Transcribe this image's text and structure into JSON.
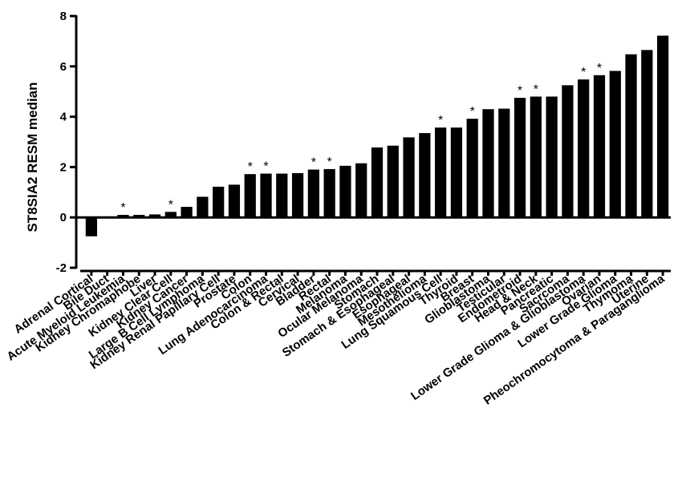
{
  "chart_data": {
    "type": "bar",
    "title": "",
    "xlabel": "",
    "ylabel": "ST8SIA2 RESM median",
    "ylim": [
      -2,
      8
    ],
    "yticks": [
      -2,
      0,
      2,
      4,
      6,
      8
    ],
    "grid": false,
    "legend": "none",
    "bar_color": "#000000",
    "significance_marker": "*",
    "categories": [
      "Adrenal Cortical",
      "Bile Duct",
      "Acute Myeloid Leukemia",
      "Kidney Chromaphobe",
      "Liver",
      "Kidney Clear Cell",
      "Kidney Cancer",
      "Large B Cell Lymphoma",
      "Kidney Renal Papillary Cell",
      "Prostate",
      "Colon",
      "Lung Adenocarcinoma",
      "Colon & Rectal",
      "Cervical",
      "Bladder",
      "Rectal",
      "Melanoma",
      "Ocular Melanoma",
      "Stomach",
      "Stomach & Esophageal",
      "Esophageal",
      "Mesothelioma",
      "Lung Squamous Cell",
      "Thyroid",
      "Breast",
      "Glioblastoma",
      "Testicular",
      "Endometroid",
      "Head & Neck",
      "Pancreatic",
      "Sacrcoma",
      "Lower Grade Glioma & Glioblastoma",
      "Ovarian",
      "Lower Grade Glioma",
      "Thymoma",
      "Uterine",
      "Pheochromocytoma & Paraganglioma"
    ],
    "values": [
      -0.75,
      0.0,
      0.1,
      0.1,
      0.12,
      0.22,
      0.42,
      0.82,
      1.22,
      1.3,
      1.72,
      1.74,
      1.74,
      1.76,
      1.9,
      1.92,
      2.05,
      2.15,
      2.78,
      2.85,
      3.18,
      3.35,
      3.57,
      3.57,
      3.92,
      4.3,
      4.32,
      4.75,
      4.8,
      4.8,
      5.25,
      5.48,
      5.65,
      5.82,
      6.48,
      6.65,
      7.22
    ],
    "significant": [
      false,
      false,
      true,
      false,
      false,
      true,
      false,
      false,
      false,
      false,
      true,
      true,
      false,
      false,
      true,
      true,
      false,
      false,
      false,
      false,
      false,
      false,
      true,
      false,
      true,
      false,
      false,
      true,
      true,
      false,
      false,
      true,
      true,
      false,
      false,
      false,
      false
    ]
  }
}
